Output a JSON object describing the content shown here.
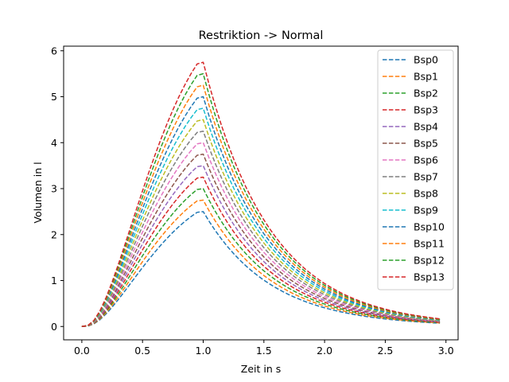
{
  "chart_data": {
    "type": "line",
    "title": "Restriktion -> Normal",
    "xlabel": "Zeit in s",
    "ylabel": "Volumen in l",
    "xlim": [
      -0.15,
      3.1
    ],
    "ylim": [
      -0.29,
      6.1
    ],
    "xticks": [
      0.0,
      0.5,
      1.0,
      1.5,
      2.0,
      2.5,
      3.0
    ],
    "xtick_labels": [
      "0.0",
      "0.5",
      "1.0",
      "1.5",
      "2.0",
      "2.5",
      "3.0"
    ],
    "yticks": [
      0,
      1,
      2,
      3,
      4,
      5,
      6
    ],
    "ytick_labels": [
      "0",
      "1",
      "2",
      "3",
      "4",
      "5",
      "6"
    ],
    "grid": false,
    "legend_position": "top-right",
    "line_style": "dashed",
    "x": [
      0.0,
      0.05,
      0.1,
      0.15,
      0.2,
      0.25,
      0.3,
      0.35,
      0.4,
      0.45,
      0.5,
      0.55,
      0.6,
      0.65,
      0.7,
      0.75,
      0.8,
      0.85,
      0.9,
      0.95,
      1.0,
      1.05,
      1.1,
      1.15,
      1.2,
      1.25,
      1.3,
      1.35,
      1.4,
      1.45,
      1.5,
      1.55,
      1.6,
      1.65,
      1.7,
      1.75,
      1.8,
      1.85,
      1.9,
      1.95,
      2.0,
      2.05,
      2.1,
      2.15,
      2.2,
      2.25,
      2.3,
      2.35,
      2.4,
      2.45,
      2.5,
      2.55,
      2.6,
      2.65,
      2.7,
      2.75,
      2.8,
      2.85,
      2.9,
      2.95
    ],
    "series": [
      {
        "name": "Bsp0",
        "color": "#1f77b4",
        "values": [
          0.0,
          0.009,
          0.058,
          0.15,
          0.275,
          0.422,
          0.585,
          0.757,
          0.933,
          1.109,
          1.283,
          1.452,
          1.614,
          1.768,
          1.913,
          2.049,
          2.174,
          2.289,
          2.393,
          2.484,
          2.5,
          2.283,
          2.085,
          1.904,
          1.739,
          1.588,
          1.45,
          1.324,
          1.209,
          1.104,
          1.008,
          0.921,
          0.841,
          0.768,
          0.701,
          0.64,
          0.585,
          0.534,
          0.488,
          0.445,
          0.407,
          0.371,
          0.339,
          0.31,
          0.283,
          0.258,
          0.236,
          0.215,
          0.197,
          0.18,
          0.164,
          0.15,
          0.137,
          0.125,
          0.114,
          0.104,
          0.095,
          0.087,
          0.079,
          0.072
        ]
      },
      {
        "name": "Bsp1",
        "color": "#ff7f0e",
        "values": [
          0.0,
          0.01,
          0.064,
          0.165,
          0.302,
          0.464,
          0.644,
          0.832,
          1.026,
          1.22,
          1.411,
          1.597,
          1.775,
          1.945,
          2.104,
          2.253,
          2.391,
          2.518,
          2.632,
          2.733,
          2.75,
          2.511,
          2.293,
          2.094,
          1.912,
          1.746,
          1.595,
          1.456,
          1.33,
          1.214,
          1.109,
          1.013,
          0.925,
          0.845,
          0.771,
          0.704,
          0.643,
          0.587,
          0.536,
          0.49,
          0.447,
          0.408,
          0.373,
          0.341,
          0.311,
          0.284,
          0.259,
          0.237,
          0.216,
          0.197,
          0.18,
          0.165,
          0.15,
          0.137,
          0.125,
          0.114,
          0.104,
          0.095,
          0.087,
          0.079
        ]
      },
      {
        "name": "Bsp2",
        "color": "#2ca02c",
        "values": [
          0.0,
          0.011,
          0.07,
          0.18,
          0.33,
          0.507,
          0.702,
          0.908,
          1.119,
          1.331,
          1.539,
          1.742,
          1.936,
          2.121,
          2.295,
          2.458,
          2.608,
          2.747,
          2.871,
          2.981,
          3.0,
          2.74,
          2.502,
          2.285,
          2.086,
          1.905,
          1.74,
          1.589,
          1.451,
          1.325,
          1.21,
          1.105,
          1.009,
          0.921,
          0.841,
          0.768,
          0.702,
          0.641,
          0.585,
          0.534,
          0.488,
          0.446,
          0.407,
          0.372,
          0.339,
          0.31,
          0.283,
          0.258,
          0.236,
          0.215,
          0.197,
          0.18,
          0.164,
          0.15,
          0.137,
          0.125,
          0.114,
          0.104,
          0.095,
          0.087
        ]
      },
      {
        "name": "Bsp3",
        "color": "#d62728",
        "values": [
          0.0,
          0.012,
          0.076,
          0.195,
          0.357,
          0.549,
          0.761,
          0.984,
          1.213,
          1.442,
          1.668,
          1.887,
          2.098,
          2.298,
          2.487,
          2.663,
          2.826,
          2.976,
          3.11,
          3.229,
          3.25,
          2.968,
          2.711,
          2.475,
          2.26,
          2.064,
          1.885,
          1.721,
          1.572,
          1.435,
          1.311,
          1.197,
          1.093,
          0.998,
          0.911,
          0.832,
          0.76,
          0.694,
          0.634,
          0.579,
          0.528,
          0.483,
          0.441,
          0.402,
          0.367,
          0.336,
          0.306,
          0.28,
          0.256,
          0.233,
          0.213,
          0.195,
          0.178,
          0.162,
          0.148,
          0.135,
          0.124,
          0.113,
          0.103,
          0.094
        ]
      },
      {
        "name": "Bsp4",
        "color": "#9467bd",
        "values": [
          0.0,
          0.013,
          0.082,
          0.21,
          0.385,
          0.591,
          0.819,
          1.06,
          1.306,
          1.553,
          1.796,
          2.032,
          2.259,
          2.475,
          2.678,
          2.868,
          3.043,
          3.205,
          3.35,
          3.478,
          3.5,
          3.196,
          2.919,
          2.666,
          2.434,
          2.223,
          2.03,
          1.854,
          1.693,
          1.546,
          1.411,
          1.289,
          1.177,
          1.075,
          0.981,
          0.896,
          0.818,
          0.747,
          0.682,
          0.623,
          0.569,
          0.52,
          0.475,
          0.433,
          0.396,
          0.361,
          0.33,
          0.301,
          0.275,
          0.251,
          0.229,
          0.21,
          0.191,
          0.175,
          0.16,
          0.146,
          0.133,
          0.121,
          0.111,
          0.101
        ]
      },
      {
        "name": "Bsp5",
        "color": "#8c564b",
        "values": [
          0.0,
          0.014,
          0.088,
          0.225,
          0.412,
          0.634,
          0.878,
          1.135,
          1.399,
          1.664,
          1.924,
          2.177,
          2.42,
          2.652,
          2.869,
          3.073,
          3.261,
          3.433,
          3.589,
          3.726,
          3.75,
          3.425,
          3.127,
          2.856,
          2.608,
          2.382,
          2.175,
          1.986,
          1.814,
          1.656,
          1.512,
          1.381,
          1.261,
          1.152,
          1.052,
          0.96,
          0.877,
          0.801,
          0.731,
          0.668,
          0.61,
          0.557,
          0.508,
          0.464,
          0.424,
          0.387,
          0.354,
          0.323,
          0.295,
          0.269,
          0.246,
          0.224,
          0.205,
          0.187,
          0.171,
          0.156,
          0.143,
          0.13,
          0.119,
          0.109
        ]
      },
      {
        "name": "Bsp6",
        "color": "#e377c2",
        "values": [
          0.0,
          0.015,
          0.093,
          0.24,
          0.44,
          0.676,
          0.936,
          1.211,
          1.492,
          1.775,
          2.052,
          2.322,
          2.582,
          2.828,
          3.061,
          3.278,
          3.478,
          3.662,
          3.828,
          3.974,
          4.0,
          3.653,
          3.336,
          3.046,
          2.782,
          2.54,
          2.32,
          2.119,
          1.935,
          1.767,
          1.613,
          1.473,
          1.345,
          1.228,
          1.122,
          1.024,
          0.935,
          0.854,
          0.78,
          0.712,
          0.65,
          0.594,
          0.542,
          0.495,
          0.452,
          0.413,
          0.377,
          0.344,
          0.314,
          0.287,
          0.262,
          0.239,
          0.219,
          0.2,
          0.182,
          0.166,
          0.152,
          0.139,
          0.127,
          0.116
        ]
      },
      {
        "name": "Bsp7",
        "color": "#7f7f7f",
        "values": [
          0.0,
          0.016,
          0.099,
          0.255,
          0.467,
          0.718,
          0.995,
          1.287,
          1.585,
          1.886,
          2.181,
          2.468,
          2.743,
          3.005,
          3.252,
          3.482,
          3.696,
          3.891,
          4.067,
          4.223,
          4.25,
          3.881,
          3.544,
          3.237,
          2.956,
          2.699,
          2.465,
          2.251,
          2.056,
          1.877,
          1.714,
          1.565,
          1.429,
          1.305,
          1.192,
          1.088,
          0.994,
          0.908,
          0.829,
          0.757,
          0.691,
          0.631,
          0.576,
          0.526,
          0.481,
          0.439,
          0.401,
          0.366,
          0.334,
          0.305,
          0.279,
          0.254,
          0.232,
          0.212,
          0.194,
          0.177,
          0.162,
          0.148,
          0.135,
          0.123
        ]
      },
      {
        "name": "Bsp8",
        "color": "#bcbd22",
        "values": [
          0.0,
          0.017,
          0.105,
          0.27,
          0.495,
          0.761,
          1.054,
          1.362,
          1.679,
          1.997,
          2.309,
          2.613,
          2.904,
          3.182,
          3.443,
          3.687,
          3.913,
          4.12,
          4.306,
          4.471,
          4.5,
          4.109,
          3.753,
          3.427,
          3.13,
          2.858,
          2.61,
          2.383,
          2.177,
          1.988,
          1.815,
          1.657,
          1.513,
          1.382,
          1.262,
          1.152,
          1.052,
          0.961,
          0.878,
          0.801,
          0.732,
          0.668,
          0.61,
          0.557,
          0.509,
          0.465,
          0.424,
          0.388,
          0.354,
          0.323,
          0.295,
          0.269,
          0.246,
          0.225,
          0.205,
          0.187,
          0.171,
          0.156,
          0.143,
          0.13
        ]
      },
      {
        "name": "Bsp9",
        "color": "#17becf",
        "values": [
          0.0,
          0.018,
          0.111,
          0.285,
          0.522,
          0.803,
          1.112,
          1.438,
          1.772,
          2.108,
          2.437,
          2.758,
          3.066,
          3.359,
          3.634,
          3.892,
          4.13,
          4.349,
          4.545,
          4.719,
          4.75,
          4.338,
          3.961,
          3.618,
          3.304,
          3.017,
          2.755,
          2.516,
          2.298,
          2.098,
          1.916,
          1.75,
          1.598,
          1.459,
          1.332,
          1.217,
          1.111,
          1.015,
          0.927,
          0.846,
          0.773,
          0.705,
          0.644,
          0.588,
          0.537,
          0.491,
          0.448,
          0.409,
          0.374,
          0.341,
          0.312,
          0.284,
          0.26,
          0.237,
          0.217,
          0.198,
          0.181,
          0.165,
          0.151,
          0.138
        ]
      },
      {
        "name": "Bsp10",
        "color": "#1f77b4",
        "values": [
          0.0,
          0.019,
          0.117,
          0.3,
          0.55,
          0.845,
          1.171,
          1.514,
          1.865,
          2.219,
          2.566,
          2.903,
          3.227,
          3.535,
          3.826,
          4.097,
          4.348,
          4.578,
          4.784,
          4.968,
          5.0,
          4.566,
          4.17,
          3.808,
          3.477,
          3.176,
          2.9,
          2.648,
          2.419,
          2.209,
          2.017,
          1.842,
          1.682,
          1.536,
          1.403,
          1.281,
          1.17,
          1.068,
          0.975,
          0.891,
          0.813,
          0.743,
          0.678,
          0.619,
          0.566,
          0.516,
          0.472,
          0.431,
          0.393,
          0.359,
          0.328,
          0.299,
          0.273,
          0.25,
          0.228,
          0.208,
          0.19,
          0.174,
          0.159,
          0.145
        ]
      },
      {
        "name": "Bsp11",
        "color": "#ff7f0e",
        "values": [
          0.0,
          0.02,
          0.123,
          0.315,
          0.577,
          0.888,
          1.229,
          1.59,
          1.958,
          2.33,
          2.694,
          3.048,
          3.388,
          3.712,
          4.017,
          4.302,
          4.565,
          4.807,
          5.024,
          5.216,
          5.25,
          4.794,
          4.378,
          3.998,
          3.651,
          3.334,
          3.045,
          2.781,
          2.54,
          2.319,
          2.118,
          1.934,
          1.766,
          1.613,
          1.473,
          1.345,
          1.228,
          1.122,
          1.024,
          0.935,
          0.854,
          0.78,
          0.712,
          0.65,
          0.594,
          0.542,
          0.495,
          0.452,
          0.413,
          0.377,
          0.344,
          0.314,
          0.287,
          0.262,
          0.239,
          0.219,
          0.2,
          0.182,
          0.166,
          0.152
        ]
      },
      {
        "name": "Bsp12",
        "color": "#2ca02c",
        "values": [
          0.0,
          0.021,
          0.128,
          0.33,
          0.605,
          0.93,
          1.288,
          1.665,
          2.052,
          2.441,
          2.822,
          3.193,
          3.55,
          3.889,
          4.208,
          4.507,
          4.783,
          5.035,
          5.263,
          5.464,
          5.5,
          5.023,
          4.587,
          4.188,
          3.825,
          3.493,
          3.19,
          2.913,
          2.66,
          2.429,
          2.219,
          2.026,
          1.85,
          1.69,
          1.543,
          1.409,
          1.287,
          1.175,
          1.073,
          0.98,
          0.895,
          0.817,
          0.746,
          0.681,
          0.622,
          0.568,
          0.519,
          0.474,
          0.433,
          0.395,
          0.361,
          0.329,
          0.301,
          0.275,
          0.251,
          0.229,
          0.209,
          0.191,
          0.174,
          0.159
        ]
      },
      {
        "name": "Bsp13",
        "color": "#d62728",
        "values": [
          0.0,
          0.022,
          0.134,
          0.345,
          0.632,
          0.972,
          1.346,
          1.741,
          2.145,
          2.552,
          2.951,
          3.339,
          3.711,
          4.065,
          4.399,
          4.711,
          5.0,
          5.264,
          5.502,
          5.713,
          5.75,
          5.251,
          4.795,
          4.379,
          3.999,
          3.652,
          3.335,
          3.045,
          2.781,
          2.54,
          2.319,
          2.118,
          1.934,
          1.766,
          1.613,
          1.473,
          1.345,
          1.228,
          1.122,
          1.024,
          0.935,
          0.854,
          0.78,
          0.712,
          0.65,
          0.594,
          0.542,
          0.495,
          0.452,
          0.413,
          0.377,
          0.344,
          0.315,
          0.287,
          0.262,
          0.24,
          0.219,
          0.2,
          0.182,
          0.166
        ]
      }
    ]
  }
}
